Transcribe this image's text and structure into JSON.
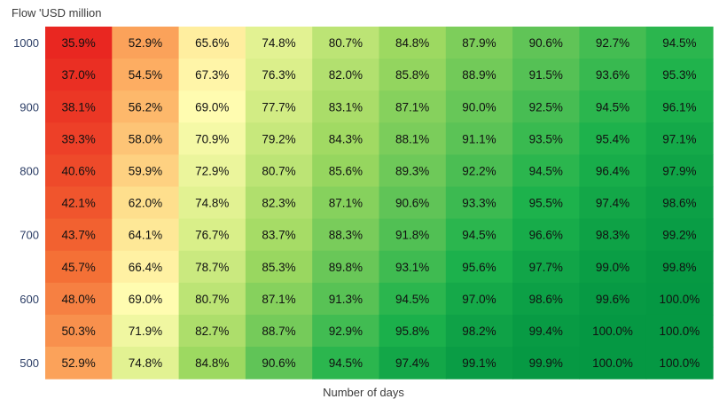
{
  "chart_data": {
    "type": "heatmap",
    "ylabel": "Flow 'USD million",
    "xlabel": "Number of days",
    "y_ticks": [
      "1000",
      "900",
      "800",
      "700",
      "600",
      "500"
    ],
    "values": [
      [
        35.9,
        52.9,
        65.6,
        74.8,
        80.7,
        84.8,
        87.9,
        90.6,
        92.7,
        94.5
      ],
      [
        37.0,
        54.5,
        67.3,
        76.3,
        82.0,
        85.8,
        88.9,
        91.5,
        93.6,
        95.3
      ],
      [
        38.1,
        56.2,
        69.0,
        77.7,
        83.1,
        87.1,
        90.0,
        92.5,
        94.5,
        96.1
      ],
      [
        39.3,
        58.0,
        70.9,
        79.2,
        84.3,
        88.1,
        91.1,
        93.5,
        95.4,
        97.1
      ],
      [
        40.6,
        59.9,
        72.9,
        80.7,
        85.6,
        89.3,
        92.2,
        94.5,
        96.4,
        97.9
      ],
      [
        42.1,
        62.0,
        74.8,
        82.3,
        87.1,
        90.6,
        93.3,
        95.5,
        97.4,
        98.6
      ],
      [
        43.7,
        64.1,
        76.7,
        83.7,
        88.3,
        91.8,
        94.5,
        96.6,
        98.3,
        99.2
      ],
      [
        45.7,
        66.4,
        78.7,
        85.3,
        89.8,
        93.1,
        95.6,
        97.7,
        99.0,
        99.8
      ],
      [
        48.0,
        69.0,
        80.7,
        87.1,
        91.3,
        94.5,
        97.0,
        98.6,
        99.6,
        100.0
      ],
      [
        50.3,
        71.9,
        82.7,
        88.7,
        92.9,
        95.8,
        98.2,
        99.4,
        100.0,
        100.0
      ],
      [
        52.9,
        74.8,
        84.8,
        90.6,
        94.5,
        97.4,
        99.1,
        99.9,
        100.0,
        100.0
      ]
    ],
    "value_suffix": "%",
    "color_scale": {
      "stops": [
        {
          "value": 35.0,
          "color": "#e8201f"
        },
        {
          "value": 45.0,
          "color": "#f36b33"
        },
        {
          "value": 55.0,
          "color": "#fdb064"
        },
        {
          "value": 62.0,
          "color": "#fedf8d"
        },
        {
          "value": 69.0,
          "color": "#fffcb0"
        },
        {
          "value": 77.0,
          "color": "#d7ee87"
        },
        {
          "value": 85.0,
          "color": "#9cd860"
        },
        {
          "value": 91.0,
          "color": "#5cc356"
        },
        {
          "value": 95.5,
          "color": "#1db24c"
        },
        {
          "value": 100.0,
          "color": "#059843"
        }
      ]
    }
  }
}
